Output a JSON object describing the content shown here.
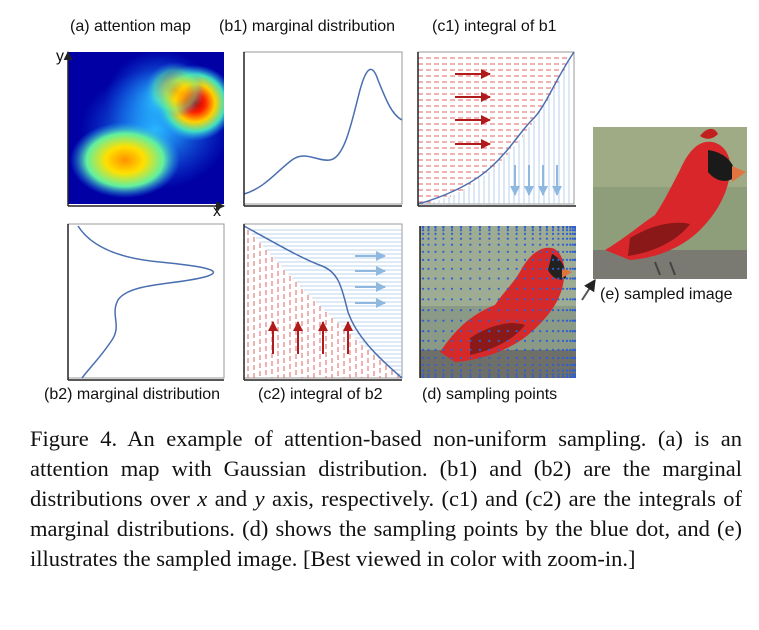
{
  "panels": {
    "a_label": "(a) attention map",
    "b1_label": "(b1) marginal distribution",
    "c1_label": "(c1) integral of b1",
    "b2_label": "(b2) marginal distribution",
    "c2_label": "(c2) integral of b2",
    "d_label": "(d) sampling points",
    "e_label": "(e) sampled image",
    "axis_y": "y",
    "axis_x": "x"
  },
  "caption": {
    "p1": "Figure 4. An example of attention-based non-uniform sampling. (a) is an attention map with Gaussian distribution. (b1) and (b2) are the marginal distributions over ",
    "var_x": "x",
    "p2": " and ",
    "var_y": "y",
    "p3": " axis, respectively. (c1) and (c2) are the integrals of marginal distributions. (d) shows the sampling points by the blue dot, and (e) illustrates the sampled image. [Best viewed in color with zoom-in.]"
  },
  "colors": {
    "curve": "#4a6fb0",
    "red_arrow": "#b11a1a",
    "blue_arrow": "#8fb8e0",
    "red_dash": "#d66",
    "blue_line": "#a9c7e6"
  }
}
